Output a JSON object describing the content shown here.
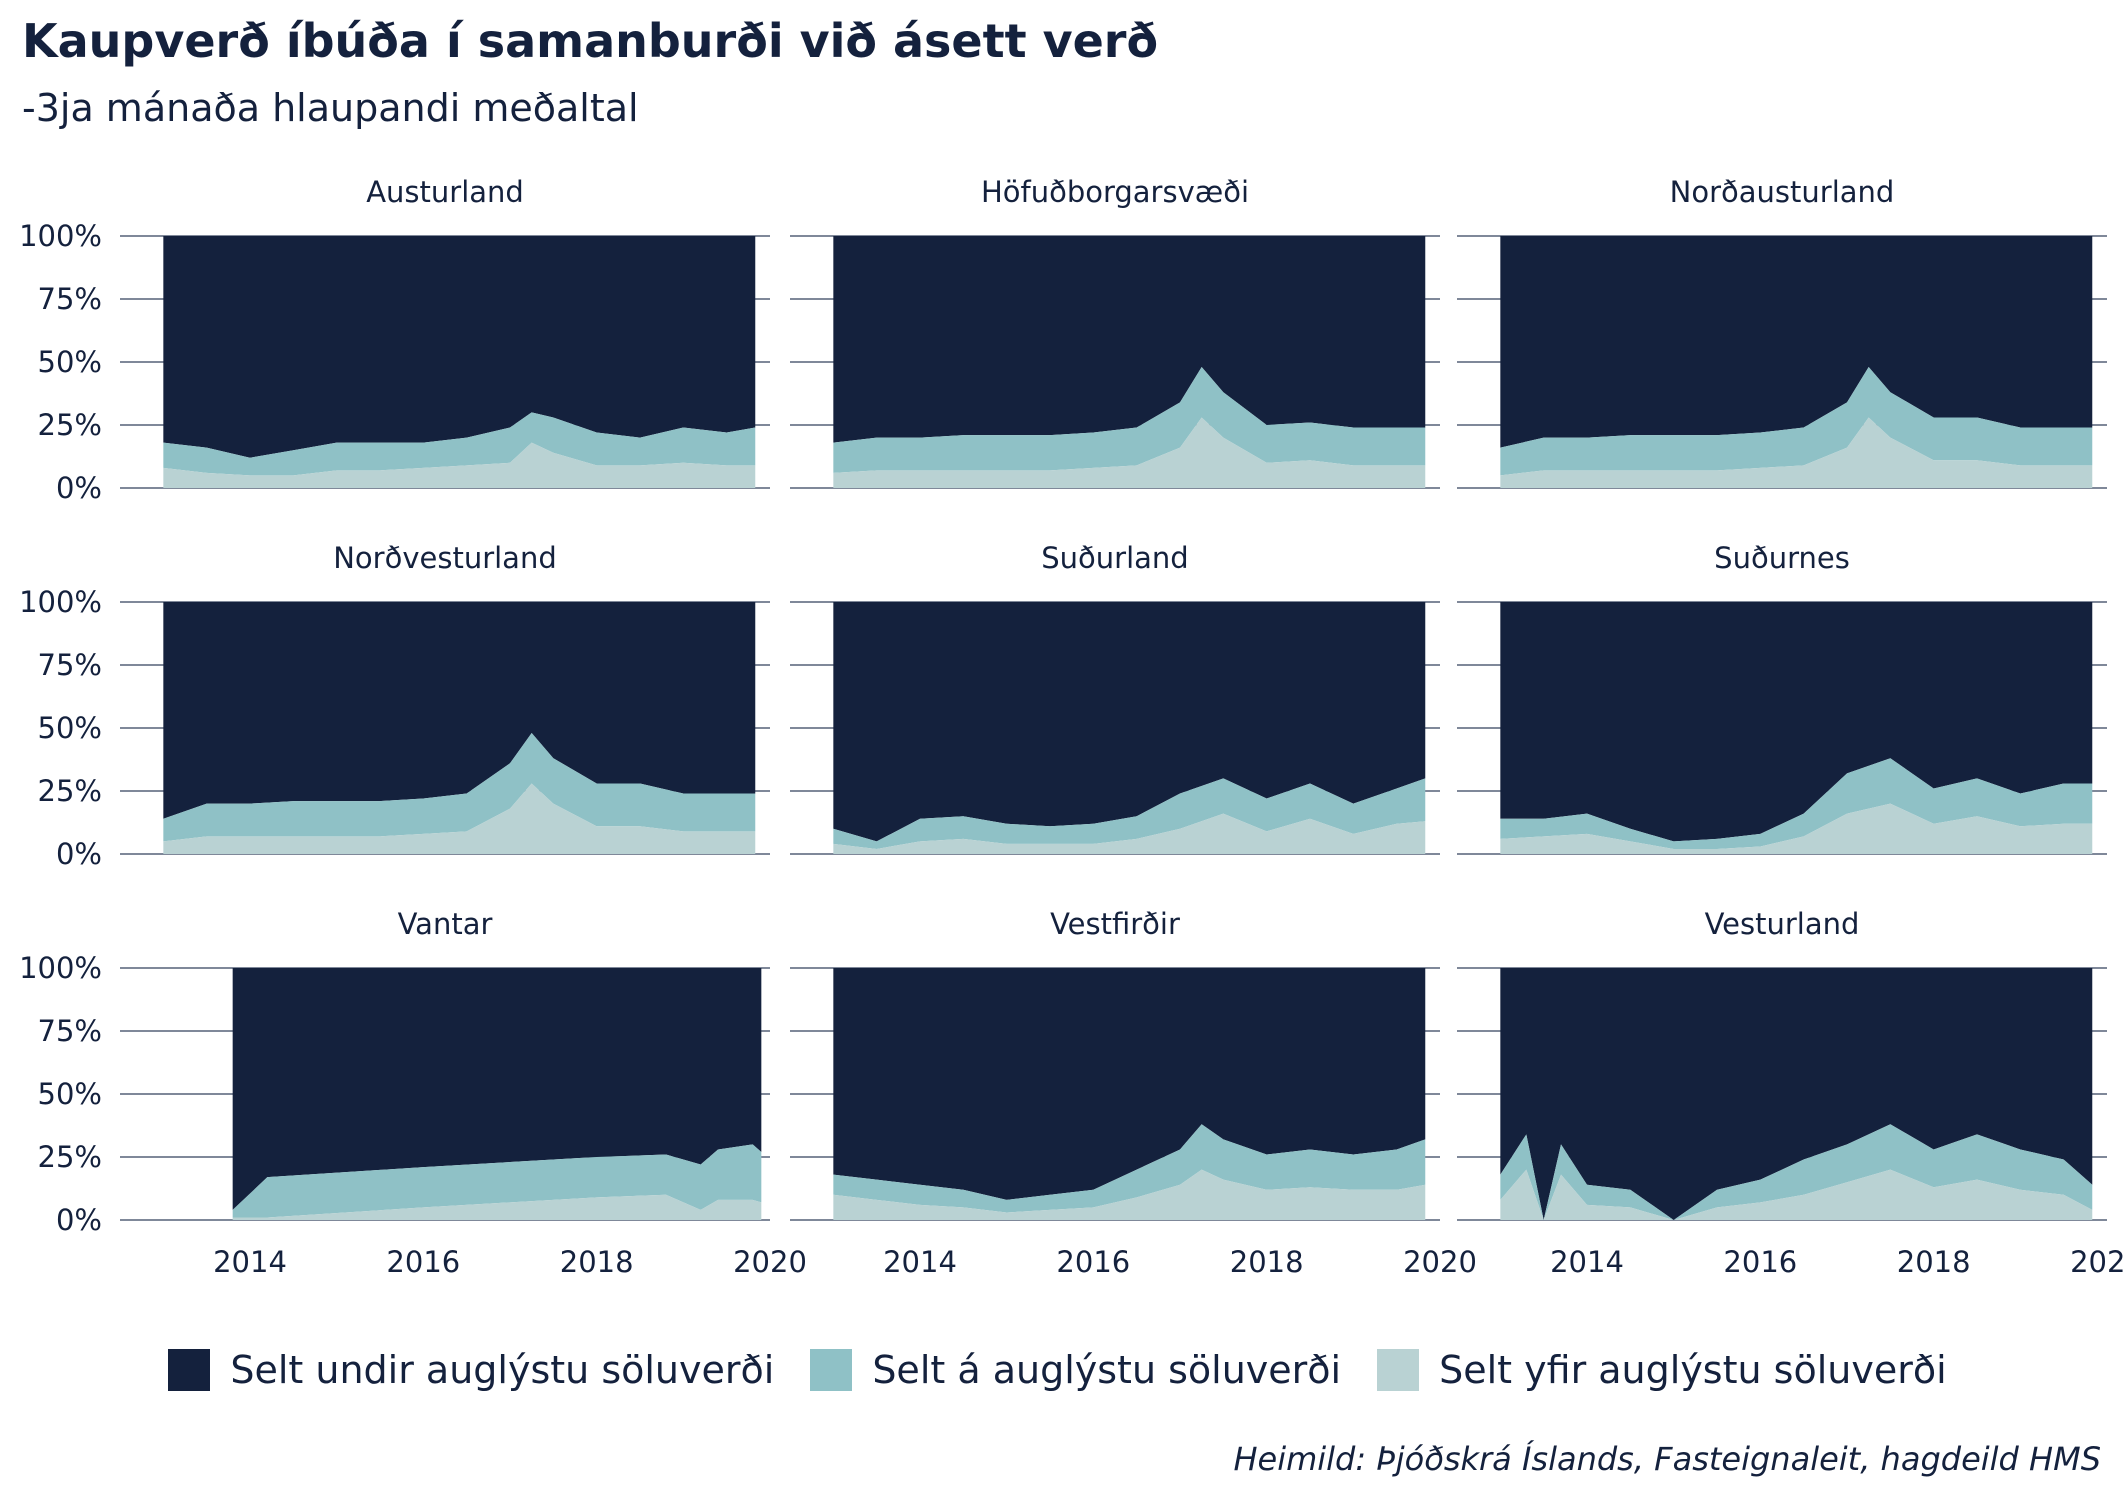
{
  "title": "Kaupverð íbúða í samanburði við ásett verð",
  "subtitle": "-3ja mánaða hlaupandi meðaltal",
  "source": "Heimild: Þjóðskrá Íslands, Fasteignaleit, hagdeild HMS",
  "colors": {
    "under": "#14213d",
    "at": "#8fc1c6",
    "over": "#b9d2d3",
    "grid": "#33415c",
    "text": "#14213d"
  },
  "legend": [
    {
      "key": "under",
      "label": "Selt undir auglýstu söluverði"
    },
    {
      "key": "at",
      "label": "Selt á auglýstu söluverði"
    },
    {
      "key": "over",
      "label": "Selt yfir auglýstu söluverði"
    }
  ],
  "chart_data": {
    "type": "area",
    "stacked": true,
    "facets": true,
    "ylim": [
      0,
      100
    ],
    "yticks": [
      "0%",
      "25%",
      "50%",
      "75%",
      "100%"
    ],
    "xlim": [
      2012.5,
      2020
    ],
    "xticks": [
      2014,
      2016,
      2018,
      2020
    ],
    "series_names": [
      "Selt undir auglýstu söluverði",
      "Selt á auglýstu söluverði",
      "Selt yfir auglýstu söluverði"
    ],
    "panels": [
      {
        "name": "Austurland",
        "x": [
          2013.0,
          2013.5,
          2014.0,
          2014.5,
          2015.0,
          2015.5,
          2016.0,
          2016.5,
          2017.0,
          2017.25,
          2017.5,
          2018.0,
          2018.5,
          2019.0,
          2019.5,
          2019.83
        ],
        "below": [
          82,
          84,
          88,
          85,
          82,
          82,
          82,
          80,
          76,
          70,
          72,
          78,
          80,
          76,
          78,
          76
        ],
        "at": [
          10,
          10,
          7,
          10,
          11,
          11,
          10,
          11,
          14,
          12,
          14,
          13,
          11,
          14,
          13,
          15
        ],
        "above": [
          8,
          6,
          5,
          5,
          7,
          7,
          8,
          9,
          10,
          18,
          14,
          9,
          9,
          10,
          9,
          9
        ]
      },
      {
        "name": "Höfuðborgarsvæði",
        "x": [
          2013.0,
          2013.5,
          2014.0,
          2014.5,
          2015.0,
          2015.5,
          2016.0,
          2016.5,
          2017.0,
          2017.25,
          2017.5,
          2018.0,
          2018.5,
          2019.0,
          2019.5,
          2019.83
        ],
        "below": [
          82,
          80,
          80,
          79,
          79,
          79,
          78,
          76,
          66,
          52,
          62,
          75,
          74,
          76,
          76,
          76
        ],
        "at": [
          12,
          13,
          13,
          14,
          14,
          14,
          14,
          15,
          18,
          20,
          18,
          15,
          15,
          15,
          15,
          15
        ],
        "above": [
          6,
          7,
          7,
          7,
          7,
          7,
          8,
          9,
          16,
          28,
          20,
          10,
          11,
          9,
          9,
          9
        ]
      },
      {
        "name": "Norðausturland",
        "x": [
          2013.0,
          2013.5,
          2014.0,
          2014.5,
          2015.0,
          2015.5,
          2016.0,
          2016.5,
          2017.0,
          2017.25,
          2017.5,
          2018.0,
          2018.5,
          2019.0,
          2019.5,
          2019.83
        ],
        "below": [
          84,
          80,
          80,
          79,
          79,
          79,
          78,
          76,
          66,
          52,
          62,
          72,
          72,
          76,
          76,
          76
        ],
        "at": [
          11,
          13,
          13,
          14,
          14,
          14,
          14,
          15,
          18,
          20,
          18,
          17,
          17,
          15,
          15,
          15
        ],
        "above": [
          5,
          7,
          7,
          7,
          7,
          7,
          8,
          9,
          16,
          28,
          20,
          11,
          11,
          9,
          9,
          9
        ]
      },
      {
        "name": "Norðvesturland",
        "x": [
          2013.0,
          2013.5,
          2014.0,
          2014.5,
          2015.0,
          2015.5,
          2016.0,
          2016.5,
          2017.0,
          2017.25,
          2017.5,
          2018.0,
          2018.5,
          2019.0,
          2019.5,
          2019.83
        ],
        "below": [
          86,
          80,
          80,
          79,
          79,
          79,
          78,
          76,
          64,
          52,
          62,
          72,
          72,
          76,
          76,
          76
        ],
        "at": [
          9,
          13,
          13,
          14,
          14,
          14,
          14,
          15,
          18,
          20,
          18,
          17,
          17,
          15,
          15,
          15
        ],
        "above": [
          5,
          7,
          7,
          7,
          7,
          7,
          8,
          9,
          18,
          28,
          20,
          11,
          11,
          9,
          9,
          9
        ]
      },
      {
        "name": "Suðurland",
        "x": [
          2013.0,
          2013.5,
          2014.0,
          2014.5,
          2015.0,
          2015.5,
          2016.0,
          2016.5,
          2017.0,
          2017.5,
          2018.0,
          2018.5,
          2019.0,
          2019.5,
          2019.83
        ],
        "below": [
          90,
          95,
          86,
          85,
          88,
          89,
          88,
          85,
          76,
          70,
          78,
          72,
          80,
          74,
          70
        ],
        "at": [
          6,
          3,
          9,
          9,
          8,
          7,
          8,
          9,
          14,
          14,
          13,
          14,
          12,
          14,
          17
        ],
        "above": [
          4,
          2,
          5,
          6,
          4,
          4,
          4,
          6,
          10,
          16,
          9,
          14,
          8,
          12,
          13
        ]
      },
      {
        "name": "Suðurnes",
        "x": [
          2013.0,
          2013.5,
          2014.0,
          2014.5,
          2015.0,
          2015.5,
          2016.0,
          2016.5,
          2017.0,
          2017.5,
          2018.0,
          2018.5,
          2019.0,
          2019.5,
          2019.83
        ],
        "below": [
          86,
          86,
          84,
          90,
          95,
          94,
          92,
          84,
          68,
          62,
          74,
          70,
          76,
          72,
          72
        ],
        "at": [
          8,
          7,
          8,
          5,
          3,
          4,
          5,
          9,
          16,
          18,
          14,
          15,
          13,
          16,
          16
        ],
        "above": [
          6,
          7,
          8,
          5,
          2,
          2,
          3,
          7,
          16,
          20,
          12,
          15,
          11,
          12,
          12
        ]
      },
      {
        "name": "Vantar",
        "x": [
          2013.8,
          2014.2,
          2016.0,
          2018.0,
          2018.8,
          2019.2,
          2019.4,
          2019.8,
          2019.9
        ],
        "below": [
          96,
          83,
          79,
          75,
          74,
          78,
          72,
          70,
          73
        ],
        "at": [
          3,
          16,
          16,
          16,
          16,
          18,
          20,
          22,
          20
        ],
        "above": [
          1,
          1,
          5,
          9,
          10,
          4,
          8,
          8,
          7
        ]
      },
      {
        "name": "Vestfirðir",
        "x": [
          2013.0,
          2013.5,
          2014.0,
          2014.5,
          2015.0,
          2015.5,
          2016.0,
          2016.5,
          2017.0,
          2017.25,
          2017.5,
          2018.0,
          2018.5,
          2019.0,
          2019.5,
          2019.83
        ],
        "below": [
          82,
          84,
          86,
          88,
          92,
          90,
          88,
          80,
          72,
          62,
          68,
          74,
          72,
          74,
          72,
          68
        ],
        "at": [
          8,
          8,
          8,
          7,
          5,
          6,
          7,
          11,
          14,
          18,
          16,
          14,
          15,
          14,
          16,
          18
        ],
        "above": [
          10,
          8,
          6,
          5,
          3,
          4,
          5,
          9,
          14,
          20,
          16,
          12,
          13,
          12,
          12,
          14
        ]
      },
      {
        "name": "Vesturland",
        "x": [
          2013.0,
          2013.3,
          2013.5,
          2013.7,
          2014.0,
          2014.5,
          2015.0,
          2015.5,
          2016.0,
          2016.5,
          2017.0,
          2017.5,
          2018.0,
          2018.5,
          2019.0,
          2019.5,
          2019.83
        ],
        "below": [
          82,
          66,
          100,
          70,
          86,
          88,
          100,
          88,
          84,
          76,
          70,
          62,
          72,
          66,
          72,
          76,
          86
        ],
        "at": [
          10,
          14,
          0,
          12,
          8,
          7,
          0,
          7,
          9,
          14,
          15,
          18,
          15,
          18,
          16,
          14,
          10
        ],
        "above": [
          8,
          20,
          0,
          18,
          6,
          5,
          0,
          5,
          7,
          10,
          15,
          20,
          13,
          16,
          12,
          10,
          4
        ]
      }
    ]
  }
}
